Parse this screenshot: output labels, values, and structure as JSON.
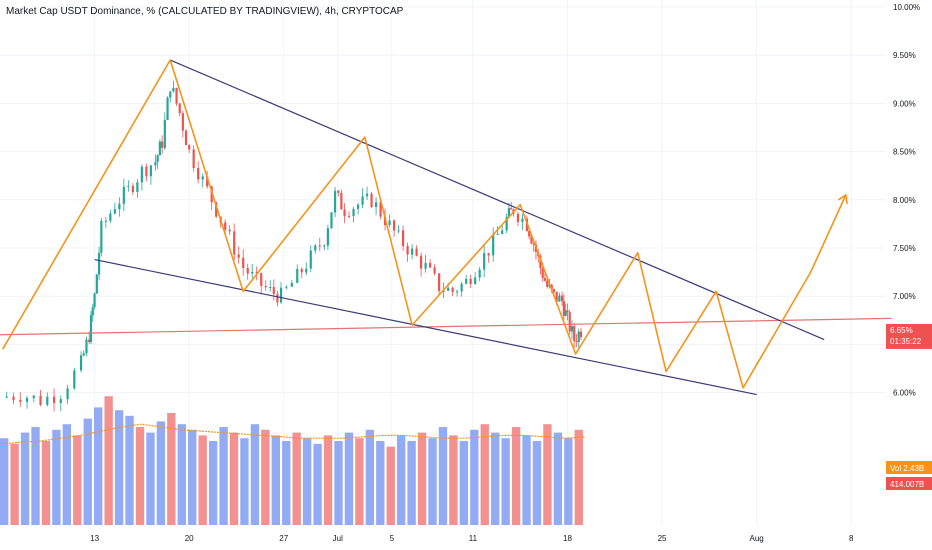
{
  "title": "Market Cap USDT Dominance, % (CALCULATED BY TRADINGVIEW), 4h, CRYPTOCAP",
  "colors": {
    "up": "#26a69a",
    "down": "#ef5350",
    "vol_up": "#6f8ff0",
    "vol_down": "#ef6b6b",
    "pattern": "#f7931a",
    "trend": "#3a3a7a",
    "hline": "#e57373",
    "vol_ma": "#f7931a",
    "badge_price": "#f05050",
    "badge_ma": "#f7931a",
    "badge_vol": "#f05050"
  },
  "chart_data": {
    "type": "candlestick",
    "y_ticks": [
      "10.00%",
      "9.50%",
      "9.00%",
      "8.50%",
      "8.00%",
      "7.50%",
      "7.00%",
      "6.50%",
      "6.00%"
    ],
    "y_tick_values": [
      10.0,
      9.5,
      9.0,
      8.5,
      8.0,
      7.5,
      7.0,
      6.5,
      6.0
    ],
    "x_ticks": [
      "13",
      "20",
      "27",
      "Jul",
      "5",
      "11",
      "18",
      "25",
      "Aug",
      "8"
    ],
    "x_tick_days": [
      13,
      20,
      27,
      31,
      35,
      41,
      48,
      55,
      62,
      69
    ],
    "x_start_day": 6,
    "x_end_day": 71.5,
    "price_range": [
      5.0,
      10.0
    ],
    "last_price_label": "6.65%",
    "last_price_value": 6.65,
    "countdown_label": "01:35:22",
    "vol_ma_label": "Vol 2.43B",
    "vol_label": "414.007B",
    "price_path": [
      [
        6.0,
        5.95
      ],
      [
        7.5,
        5.98
      ],
      [
        9.0,
        5.92
      ],
      [
        10.5,
        6.0
      ],
      [
        12.0,
        6.3
      ],
      [
        12.6,
        6.6
      ],
      [
        13.0,
        7.0
      ],
      [
        13.5,
        7.7
      ],
      [
        14.5,
        7.95
      ],
      [
        15.5,
        8.1
      ],
      [
        16.5,
        8.3
      ],
      [
        17.5,
        8.4
      ],
      [
        18.0,
        8.6
      ],
      [
        18.6,
        9.2
      ],
      [
        19.3,
        8.9
      ],
      [
        20.0,
        8.5
      ],
      [
        21.0,
        8.2
      ],
      [
        22.0,
        7.9
      ],
      [
        23.0,
        7.6
      ],
      [
        24.0,
        7.3
      ],
      [
        25.0,
        7.15
      ],
      [
        26.0,
        7.05
      ],
      [
        26.8,
        7.0
      ],
      [
        28.0,
        7.2
      ],
      [
        29.0,
        7.4
      ],
      [
        30.0,
        7.6
      ],
      [
        30.8,
        8.05
      ],
      [
        31.5,
        7.9
      ],
      [
        32.5,
        7.95
      ],
      [
        33.5,
        8.0
      ],
      [
        34.5,
        7.8
      ],
      [
        35.5,
        7.6
      ],
      [
        36.5,
        7.45
      ],
      [
        37.5,
        7.3
      ],
      [
        38.5,
        7.1
      ],
      [
        39.5,
        7.05
      ],
      [
        40.5,
        7.15
      ],
      [
        41.5,
        7.35
      ],
      [
        42.5,
        7.55
      ],
      [
        43.5,
        7.8
      ],
      [
        44.0,
        7.9
      ],
      [
        45.0,
        7.75
      ],
      [
        45.5,
        7.55
      ],
      [
        46.0,
        7.3
      ],
      [
        46.5,
        7.1
      ],
      [
        47.0,
        7.0
      ],
      [
        47.6,
        6.95
      ],
      [
        48.0,
        6.75
      ],
      [
        48.5,
        6.55
      ],
      [
        49.0,
        6.65
      ]
    ],
    "volume_values": [
      3.1,
      2.9,
      3.3,
      3.5,
      3.0,
      3.4,
      3.6,
      3.2,
      3.8,
      4.2,
      4.6,
      4.1,
      3.9,
      3.5,
      3.3,
      3.7,
      4.0,
      3.6,
      3.4,
      3.2,
      3.0,
      3.5,
      3.3,
      3.1,
      3.6,
      3.4,
      3.2,
      3.0,
      3.3,
      3.1,
      2.9,
      3.2,
      3.0,
      3.3,
      3.1,
      3.4,
      3.0,
      2.8,
      3.2,
      3.0,
      3.3,
      3.1,
      3.5,
      3.2,
      3.0,
      3.4,
      3.6,
      3.3,
      3.1,
      3.5,
      3.2,
      3.0,
      3.6,
      3.3,
      3.1,
      3.4
    ],
    "volume_ma": [
      2.9,
      2.95,
      3.0,
      3.1,
      3.2,
      3.35,
      3.5,
      3.6,
      3.5,
      3.4,
      3.35,
      3.3,
      3.25,
      3.2,
      3.15,
      3.1,
      3.1,
      3.1,
      3.15,
      3.2,
      3.2,
      3.15,
      3.1,
      3.1,
      3.15,
      3.2,
      3.2,
      3.15,
      3.1,
      3.15
    ],
    "volume_max": 5.0,
    "pattern_zigzag": [
      [
        6.2,
        6.45
      ],
      [
        18.6,
        9.45
      ],
      [
        24.0,
        7.05
      ],
      [
        33.0,
        8.65
      ],
      [
        36.5,
        6.7
      ],
      [
        44.5,
        7.95
      ],
      [
        48.6,
        6.4
      ],
      [
        53.2,
        7.45
      ],
      [
        55.3,
        6.22
      ],
      [
        59.0,
        7.05
      ],
      [
        61.0,
        6.05
      ],
      [
        66.0,
        7.25
      ],
      [
        68.6,
        8.05
      ]
    ],
    "trendline_upper": [
      [
        18.6,
        9.45
      ],
      [
        67.0,
        6.55
      ]
    ],
    "trendline_lower": [
      [
        13.0,
        7.38
      ],
      [
        62.0,
        5.98
      ]
    ],
    "horizontal_line": [
      [
        6.0,
        6.6
      ],
      [
        72.0,
        6.77
      ]
    ]
  }
}
